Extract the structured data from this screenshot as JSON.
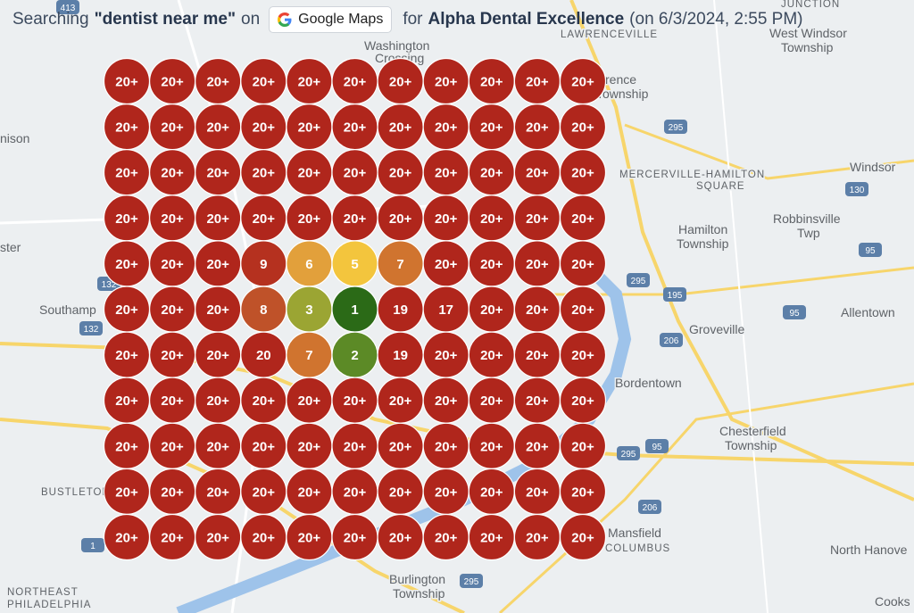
{
  "header": {
    "prefix": "Searching",
    "keyword": "\"dentist near me\"",
    "on": "on",
    "source_button": "Google Maps",
    "for": "for",
    "business": "Alpha Dental Excellence",
    "timestamp": "(on 6/3/2024, 2:55 PM)"
  },
  "grid": {
    "rows": [
      [
        "20+",
        "20+",
        "20+",
        "20+",
        "20+",
        "20+",
        "20+",
        "20+",
        "20+",
        "20+",
        "20+"
      ],
      [
        "20+",
        "20+",
        "20+",
        "20+",
        "20+",
        "20+",
        "20+",
        "20+",
        "20+",
        "20+",
        "20+"
      ],
      [
        "20+",
        "20+",
        "20+",
        "20+",
        "20+",
        "20+",
        "20+",
        "20+",
        "20+",
        "20+",
        "20+"
      ],
      [
        "20+",
        "20+",
        "20+",
        "20+",
        "20+",
        "20+",
        "20+",
        "20+",
        "20+",
        "20+",
        "20+"
      ],
      [
        "20+",
        "20+",
        "20+",
        "9",
        "6",
        "5",
        "7",
        "20+",
        "20+",
        "20+",
        "20+"
      ],
      [
        "20+",
        "20+",
        "20+",
        "8",
        "3",
        "1",
        "19",
        "17",
        "20+",
        "20+",
        "20+"
      ],
      [
        "20+",
        "20+",
        "20+",
        "20",
        "7",
        "2",
        "19",
        "20+",
        "20+",
        "20+",
        "20+"
      ],
      [
        "20+",
        "20+",
        "20+",
        "20+",
        "20+",
        "20+",
        "20+",
        "20+",
        "20+",
        "20+",
        "20+"
      ],
      [
        "20+",
        "20+",
        "20+",
        "20+",
        "20+",
        "20+",
        "20+",
        "20+",
        "20+",
        "20+",
        "20+"
      ],
      [
        "20+",
        "20+",
        "20+",
        "20+",
        "20+",
        "20+",
        "20+",
        "20+",
        "20+",
        "20+",
        "20+"
      ],
      [
        "20+",
        "20+",
        "20+",
        "20+",
        "20+",
        "20+",
        "20+",
        "20+",
        "20+",
        "20+",
        "20+"
      ]
    ],
    "colors": {
      "20+": "#b0261c",
      "20": "#b0261c",
      "19": "#b0261c",
      "17": "#b0261c",
      "9": "#b5311f",
      "8": "#bf5229",
      "7": "#d0742f",
      "6": "#e2a03b",
      "5": "#f3c53d",
      "3": "#9ba533",
      "2": "#5c8a26",
      "1": "#2b6a17"
    }
  },
  "map_labels": [
    "Washington",
    "Crossing",
    "LAWRENCEVILLE",
    "JUNCTION",
    "West Windsor",
    "Township",
    "rence",
    "Township",
    "nison",
    "MERCERVILLE-HAMILTON",
    "SQUARE",
    "Windsor",
    "Robbinsville",
    "Twp",
    "Hamilton",
    "Township",
    "ster",
    "Southamp",
    "Allentown",
    "Groveville",
    "Bordentown",
    "Chesterfield",
    "Township",
    "BUSTLETON",
    "Mansfield",
    "COLUMBUS",
    "North Hanove",
    "Burlington",
    "Township",
    "NORTHEAST",
    "PHILADELPHIA",
    "Cooks"
  ],
  "route_shields": [
    "413",
    "295",
    "130",
    "132",
    "132",
    "195",
    "295",
    "95",
    "95",
    "206",
    "206",
    "295",
    "95",
    "1",
    "295"
  ]
}
